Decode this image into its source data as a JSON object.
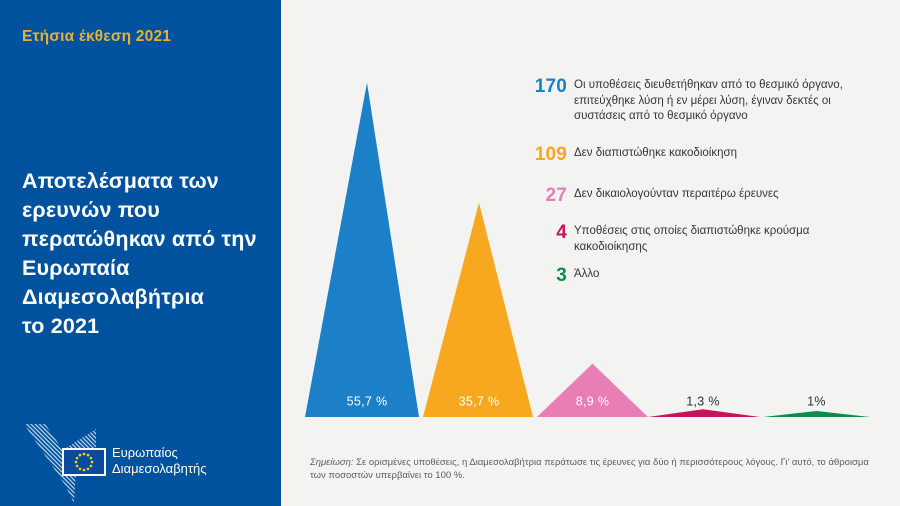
{
  "panel": {
    "report_label": "Ετήσια έκθεση 2021",
    "title_lines": [
      "Αποτελέσματα των",
      "ερευνών που",
      "περατώθηκαν από την",
      "Ευρωπαία",
      "Διαμεσολαβήτρια",
      "το 2021"
    ],
    "logo_text_lines": [
      "Ευρωπαίος",
      "Διαμεσολαβητής"
    ],
    "colors": {
      "panel_bg": "#00529e",
      "accent_yellow": "#eab12e"
    }
  },
  "chart_data": {
    "type": "area",
    "subtype": "triangular-peaks",
    "title": "Αποτελέσματα των ερευνών που περατώθηκαν από την Ευρωπαία Διαμεσολαβήτρια το 2021",
    "background": "#f3f3f1",
    "baseline_pct": 0,
    "items": [
      {
        "count": 170,
        "pct_label": "55,7 %",
        "pct_value": 55.7,
        "color": "#1b80c8",
        "label": "Οι υποθέσεις διευθετήθηκαν από το θεσμικό όργανο, επιτεύχθηκε λύση ή εν μέρει λύση, έγιναν δεκτές οι συστάσεις από το θεσμικό όργανο"
      },
      {
        "count": 109,
        "pct_label": "35,7 %",
        "pct_value": 35.7,
        "color": "#f8a81f",
        "label": "Δεν διαπιστώθηκε κακοδιοίκηση"
      },
      {
        "count": 27,
        "pct_label": "8,9 %",
        "pct_value": 8.9,
        "color": "#e87eb4",
        "label": "Δεν δικαιολογούνταν περαιτέρω έρευνες"
      },
      {
        "count": 4,
        "pct_label": "1,3 %",
        "pct_value": 1.3,
        "color": "#c3155c",
        "label": "Υποθέσεις στις οποίες διαπιστώθηκε κρούσμα κακοδιοίκησης"
      },
      {
        "count": 3,
        "pct_label": "1%",
        "pct_value": 1.0,
        "color": "#0f8a4d",
        "label": "Άλλο"
      }
    ],
    "note": {
      "prefix": "Σημείωση:",
      "line1": " Σε ορισμένες υποθέσεις, η Διαμεσολαβήτρια περάτωσε τις έρευνες για δύο ή περισσότερους λόγους. Γι’ αυτό, το άθροισμα",
      "line2": "των ποσοστών υπερβαίνει το 100 %."
    }
  }
}
